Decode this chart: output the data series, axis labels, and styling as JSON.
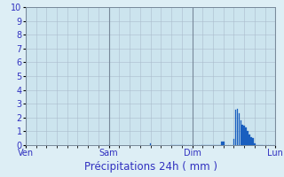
{
  "title": "Précipitations 24h ( mm )",
  "background_color": "#ddeef5",
  "plot_bg_color": "#cce4ee",
  "outer_bg_color": "#ddeef5",
  "bar_color": "#1a5fbf",
  "bar_edge_color": "#1a5fbf",
  "ylim": [
    0,
    10
  ],
  "yticks": [
    0,
    1,
    2,
    3,
    4,
    5,
    6,
    7,
    8,
    9,
    10
  ],
  "day_labels": [
    "Ven",
    "Sam",
    "Dim",
    "Lun"
  ],
  "day_positions": [
    0,
    48,
    96,
    144
  ],
  "total_hours": 144,
  "bar_data": [
    [
      47,
      0.0
    ],
    [
      48,
      0.0
    ],
    [
      72,
      0.12
    ],
    [
      84,
      0.0
    ],
    [
      85,
      0.0
    ],
    [
      86,
      0.0
    ],
    [
      87,
      0.0
    ],
    [
      88,
      0.0
    ],
    [
      89,
      0.0
    ],
    [
      90,
      0.0
    ],
    [
      91,
      0.0
    ],
    [
      92,
      0.0
    ],
    [
      93,
      0.0
    ],
    [
      94,
      0.0
    ],
    [
      95,
      0.0
    ],
    [
      96,
      0.0
    ],
    [
      97,
      0.0
    ],
    [
      98,
      0.0
    ],
    [
      99,
      0.0
    ],
    [
      100,
      0.0
    ],
    [
      101,
      0.0
    ],
    [
      102,
      0.0
    ],
    [
      103,
      0.0
    ],
    [
      104,
      0.0
    ],
    [
      105,
      0.0
    ],
    [
      106,
      0.0
    ],
    [
      107,
      0.0
    ],
    [
      108,
      0.0
    ],
    [
      109,
      0.0
    ],
    [
      110,
      0.0
    ],
    [
      111,
      0.0
    ],
    [
      112,
      0.0
    ],
    [
      113,
      0.25
    ],
    [
      114,
      0.25
    ],
    [
      115,
      0.0
    ],
    [
      116,
      0.0
    ],
    [
      117,
      0.0
    ],
    [
      118,
      0.0
    ],
    [
      119,
      0.0
    ],
    [
      120,
      0.45
    ],
    [
      121,
      2.55
    ],
    [
      122,
      2.6
    ],
    [
      123,
      2.3
    ],
    [
      124,
      1.8
    ],
    [
      125,
      1.5
    ],
    [
      126,
      1.4
    ],
    [
      127,
      1.3
    ],
    [
      128,
      1.0
    ],
    [
      129,
      0.8
    ],
    [
      130,
      0.6
    ],
    [
      131,
      0.5
    ],
    [
      132,
      0.15
    ],
    [
      133,
      0.0
    ],
    [
      134,
      0.0
    ],
    [
      135,
      0.0
    ],
    [
      136,
      0.0
    ],
    [
      137,
      0.0
    ],
    [
      138,
      0.0
    ],
    [
      139,
      0.0
    ],
    [
      140,
      0.0
    ],
    [
      141,
      0.0
    ],
    [
      142,
      0.0
    ],
    [
      143,
      0.0
    ],
    [
      144,
      0.0
    ]
  ],
  "grid_color": "#aabccc",
  "vline_color": "#778899",
  "label_color": "#3030c0",
  "title_color": "#3030c0",
  "title_fontsize": 8.5,
  "tick_fontsize": 7,
  "xlabel_fontsize": 8.5
}
